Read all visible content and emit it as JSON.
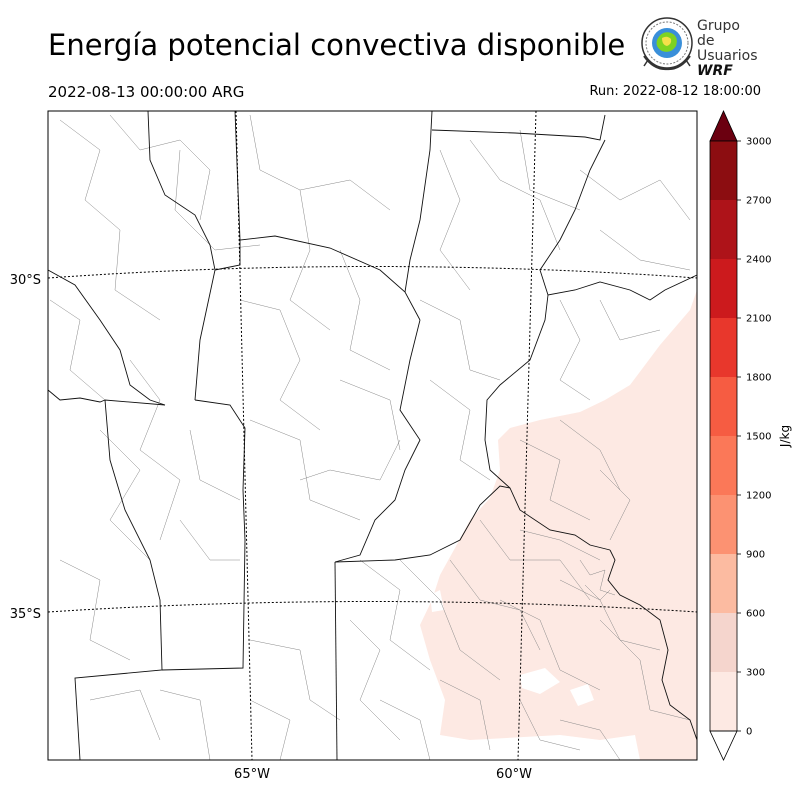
{
  "header": {
    "title": "Energía potencial convectiva disponible",
    "valid_time": "2022-08-13 00:00:00 ARG",
    "run_time": "Run: 2022-08-12 18:00:00"
  },
  "logo": {
    "line1": "Grupo de",
    "line2": "Usuarios",
    "line3": "WRF"
  },
  "map": {
    "lat_labels": [
      "30°S",
      "35°S"
    ],
    "lon_labels": [
      "65°W",
      "60°W"
    ],
    "gridlines": "dotted",
    "extent": {
      "lon": [
        -68.8,
        -56.4
      ],
      "lat": [
        -38.0,
        -28.9
      ]
    }
  },
  "colorbar": {
    "unit": "J/kg",
    "ticks": [
      "0",
      "300",
      "600",
      "900",
      "1200",
      "1500",
      "1800",
      "2100",
      "2400",
      "2700",
      "3000"
    ],
    "colors": [
      "#fde9e3",
      "#f5d5cd",
      "#fcbba1",
      "#fc9272",
      "#fb7858",
      "#f65c42",
      "#e8372c",
      "#cc1a1d",
      "#ae1319",
      "#8c0d11"
    ],
    "under_color": "#ffffff",
    "over_color": "#6b0010"
  },
  "colors": {
    "cape_fill": "#fde9e3",
    "border": "#000000",
    "department_lines": "#888888"
  }
}
